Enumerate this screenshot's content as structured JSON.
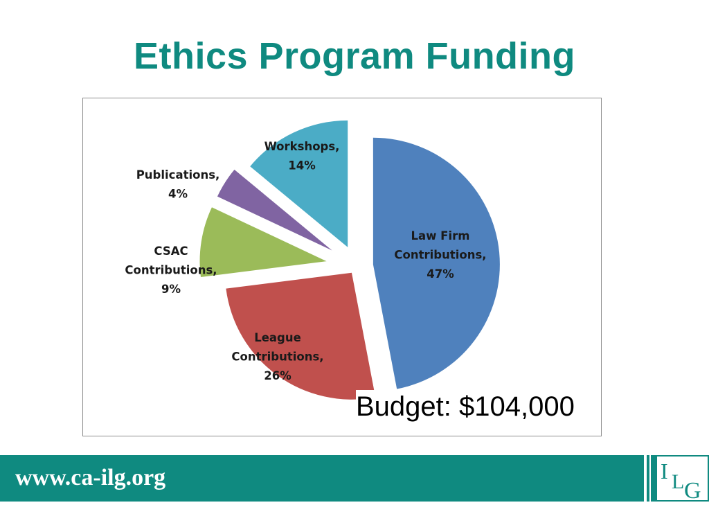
{
  "slide": {
    "title": "Ethics Program Funding",
    "budget_text": "Budget: $104,000",
    "footer_url": "www.ca-ilg.org",
    "logo_text": "ILG"
  },
  "colors": {
    "title": "#0f8a80",
    "footer": "#0f8a80"
  },
  "chart_data": {
    "type": "pie",
    "title": "",
    "exploded": true,
    "series": [
      {
        "name": "Law Firm Contributions",
        "value": 47,
        "label_lines": [
          "Law Firm",
          "Contributions,",
          "47%"
        ],
        "color": "#4f81bd"
      },
      {
        "name": "League Contributions",
        "value": 26,
        "label_lines": [
          "League",
          "Contributions,",
          "26%"
        ],
        "color": "#c0504d"
      },
      {
        "name": "CSAC Contributions",
        "value": 9,
        "label_lines": [
          "CSAC",
          "Contributions,",
          "9%"
        ],
        "color": "#9bbb59"
      },
      {
        "name": "Publications",
        "value": 4,
        "label_lines": [
          "Publications,",
          "4%"
        ],
        "color": "#8064a2"
      },
      {
        "name": "Workshops",
        "value": 14,
        "label_lines": [
          "Workshops,",
          "14%"
        ],
        "color": "#4bacc6"
      }
    ]
  }
}
